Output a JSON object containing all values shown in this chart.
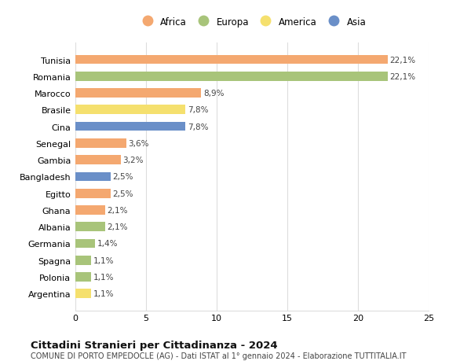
{
  "categories": [
    "Tunisia",
    "Romania",
    "Marocco",
    "Brasile",
    "Cina",
    "Senegal",
    "Gambia",
    "Bangladesh",
    "Egitto",
    "Ghana",
    "Albania",
    "Germania",
    "Spagna",
    "Polonia",
    "Argentina"
  ],
  "values": [
    22.1,
    22.1,
    8.9,
    7.8,
    7.8,
    3.6,
    3.2,
    2.5,
    2.5,
    2.1,
    2.1,
    1.4,
    1.1,
    1.1,
    1.1
  ],
  "labels": [
    "22,1%",
    "22,1%",
    "8,9%",
    "7,8%",
    "7,8%",
    "3,6%",
    "3,2%",
    "2,5%",
    "2,5%",
    "2,1%",
    "2,1%",
    "1,4%",
    "1,1%",
    "1,1%",
    "1,1%"
  ],
  "continents": [
    "Africa",
    "Europa",
    "Africa",
    "America",
    "Asia",
    "Africa",
    "Africa",
    "Asia",
    "Africa",
    "Africa",
    "Europa",
    "Europa",
    "Europa",
    "Europa",
    "America"
  ],
  "continent_colors": {
    "Africa": "#F4A870",
    "Europa": "#A8C47A",
    "America": "#F5E06E",
    "Asia": "#6A8FC8"
  },
  "legend_items": [
    "Africa",
    "Europa",
    "America",
    "Asia"
  ],
  "legend_colors": [
    "#F4A870",
    "#A8C47A",
    "#F5E06E",
    "#6A8FC8"
  ],
  "xlim": [
    0,
    25
  ],
  "xticks": [
    0,
    5,
    10,
    15,
    20,
    25
  ],
  "title": "Cittadini Stranieri per Cittadinanza - 2024",
  "subtitle": "COMUNE DI PORTO EMPEDOCLE (AG) - Dati ISTAT al 1° gennaio 2024 - Elaborazione TUTTITALIA.IT",
  "background_color": "#ffffff",
  "bar_height": 0.55,
  "grid_color": "#dddddd",
  "label_fontsize": 7.5,
  "ytick_fontsize": 8,
  "xtick_fontsize": 8
}
